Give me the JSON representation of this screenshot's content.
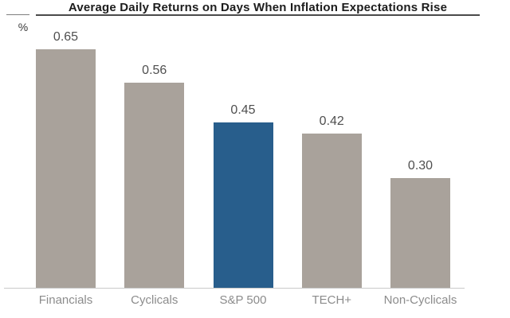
{
  "chart_data": {
    "type": "bar",
    "title": "Average Daily Returns on Days When Inflation Expectations Rise",
    "ylabel": "%",
    "xlabel": "",
    "categories": [
      "Financials",
      "Cyclicals",
      "S&P 500",
      "TECH+",
      "Non-Cyclicals"
    ],
    "values": [
      0.65,
      0.56,
      0.45,
      0.42,
      0.3
    ],
    "value_labels": [
      "0.65",
      "0.56",
      "0.45",
      "0.42",
      "0.30"
    ],
    "highlighted_category": "S&P 500",
    "ylim": [
      0,
      0.74
    ],
    "grid": false,
    "legend": false,
    "colors": {
      "bar_default": "#A9A29B",
      "bar_highlight": "#285E8C",
      "title_text": "#1C1C1C",
      "value_label_text": "#4F4F4F",
      "category_label_text": "#8C8C8C",
      "axis_line": "#C9C9C9",
      "title_underline": "#4A4A4A"
    }
  }
}
